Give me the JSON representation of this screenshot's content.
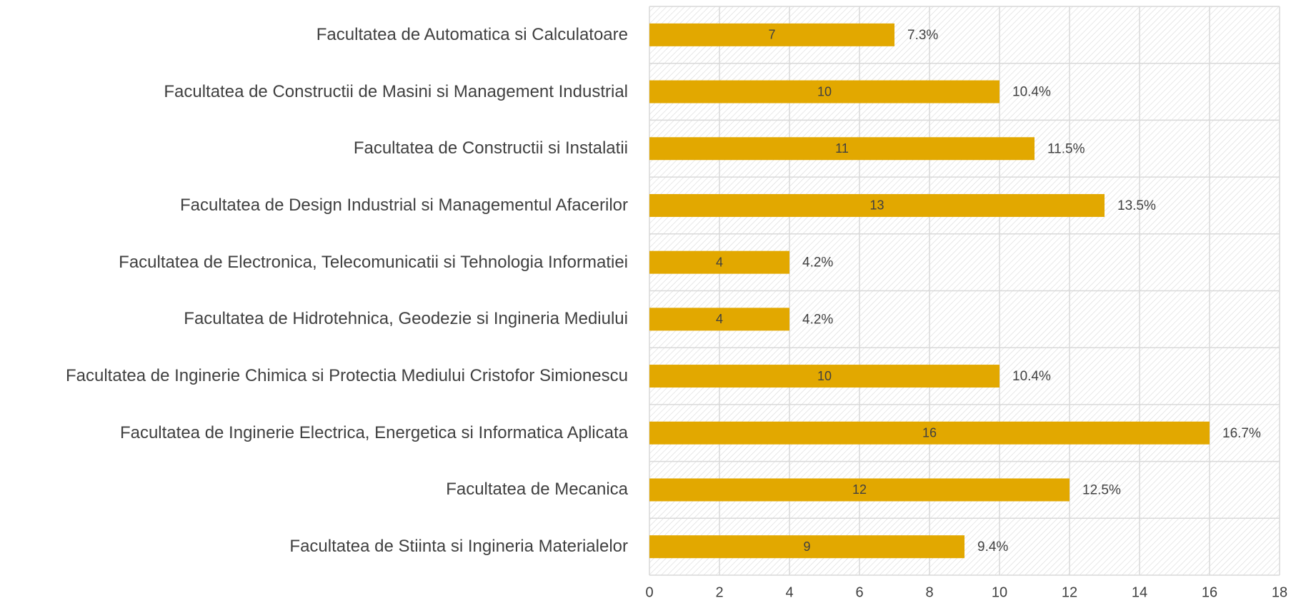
{
  "chart_data": {
    "type": "hbar",
    "categories": [
      "Facultatea de Automatica si Calculatoare",
      "Facultatea de Constructii de Masini si Management Industrial",
      "Facultatea de Constructii si Instalatii",
      "Facultatea de Design Industrial si Managementul Afacerilor",
      "Facultatea de Electronica, Telecomunicatii si Tehnologia Informatiei",
      "Facultatea de Hidrotehnica, Geodezie si Ingineria Mediului",
      "Facultatea de Inginerie Chimica si Protectia Mediului Cristofor Simionescu",
      "Facultatea de Inginerie Electrica, Energetica si Informatica Aplicata",
      "Facultatea de Mecanica",
      "Facultatea de Stiinta si Ingineria Materialelor"
    ],
    "series": [
      {
        "color": "#e2a800",
        "values": [
          7,
          10,
          11,
          13,
          4,
          4,
          10,
          16,
          12,
          9
        ]
      },
      {
        "values": [
          7.3,
          10.4,
          11.5,
          13.5,
          4.2,
          4.2,
          10.4,
          16.7,
          12.5,
          9.4
        ],
        "value_labels": [
          "7.3%",
          "10.4%",
          "11.5%",
          "13.5%",
          "4.2%",
          "4.2%",
          "10.4%",
          "16.7%",
          "12.5%",
          "9.4%"
        ]
      }
    ],
    "xlim": [
      0,
      18
    ],
    "xticks": [
      0,
      2,
      4,
      6,
      8,
      10,
      12,
      14,
      16,
      18
    ],
    "grid": true
  }
}
